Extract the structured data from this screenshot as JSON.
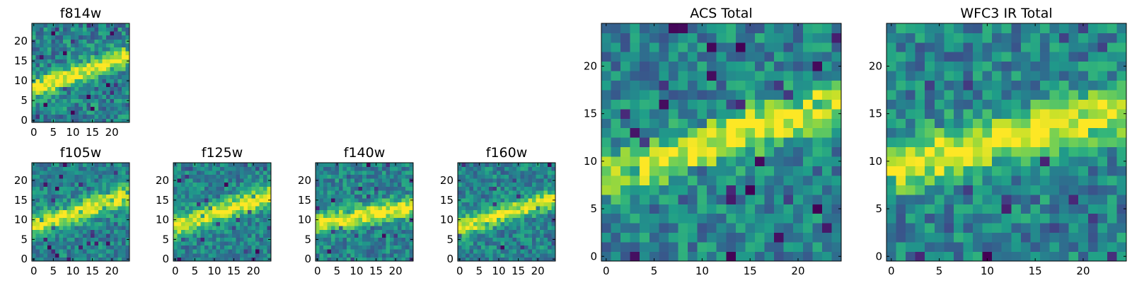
{
  "chart_data": [
    {
      "type": "heatmap",
      "title": "f814w",
      "grid_size": 25,
      "xlim": [
        -0.5,
        24.5
      ],
      "ylim": [
        -0.5,
        24.5
      ],
      "xticks": [
        0,
        5,
        10,
        15,
        20
      ],
      "yticks": [
        0,
        5,
        10,
        15,
        20
      ],
      "colormap": "viridis",
      "grid": false,
      "feature": {
        "description_free": true,
        "band_slope": 0.35,
        "band_intercept": 8.0,
        "band_width": 2.3,
        "noise": 0.42,
        "seed": 11
      }
    },
    {
      "type": "heatmap",
      "title": "f105w",
      "grid_size": 25,
      "xlim": [
        -0.5,
        24.5
      ],
      "ylim": [
        -0.5,
        24.5
      ],
      "xticks": [
        0,
        5,
        10,
        15,
        20
      ],
      "yticks": [
        0,
        5,
        10,
        15,
        20
      ],
      "colormap": "viridis",
      "grid": false,
      "feature": {
        "band_slope": 0.32,
        "band_intercept": 8.5,
        "band_width": 2.6,
        "noise": 0.34,
        "seed": 23
      }
    },
    {
      "type": "heatmap",
      "title": "f125w",
      "grid_size": 25,
      "xlim": [
        -0.5,
        24.5
      ],
      "ylim": [
        -0.5,
        24.5
      ],
      "xticks": [
        0,
        5,
        10,
        15,
        20
      ],
      "yticks": [
        0,
        5,
        10,
        15,
        20
      ],
      "colormap": "viridis",
      "grid": false,
      "feature": {
        "band_slope": 0.33,
        "band_intercept": 8.3,
        "band_width": 2.6,
        "noise": 0.34,
        "seed": 37
      }
    },
    {
      "type": "heatmap",
      "title": "f140w",
      "grid_size": 25,
      "xlim": [
        -0.5,
        24.5
      ],
      "ylim": [
        -0.5,
        24.5
      ],
      "xticks": [
        0,
        5,
        10,
        15,
        20
      ],
      "yticks": [
        0,
        5,
        10,
        15,
        20
      ],
      "colormap": "viridis",
      "grid": false,
      "feature": {
        "band_slope": 0.18,
        "band_intercept": 9.0,
        "band_width": 2.4,
        "noise": 0.36,
        "seed": 41
      }
    },
    {
      "type": "heatmap",
      "title": "f160w",
      "grid_size": 25,
      "xlim": [
        -0.5,
        24.5
      ],
      "ylim": [
        -0.5,
        24.5
      ],
      "xticks": [
        0,
        5,
        10,
        15,
        20
      ],
      "yticks": [
        0,
        5,
        10,
        15,
        20
      ],
      "colormap": "viridis",
      "grid": false,
      "feature": {
        "band_slope": 0.3,
        "band_intercept": 8.2,
        "band_width": 2.3,
        "noise": 0.36,
        "seed": 53
      }
    },
    {
      "type": "heatmap",
      "title": "ACS Total",
      "grid_size": 25,
      "xlim": [
        -0.5,
        24.5
      ],
      "ylim": [
        -0.5,
        24.5
      ],
      "xticks": [
        0,
        5,
        10,
        15,
        20
      ],
      "yticks": [
        0,
        5,
        10,
        15,
        20
      ],
      "colormap": "viridis",
      "grid": false,
      "feature": {
        "band_slope": 0.35,
        "band_intercept": 8.0,
        "band_width": 2.4,
        "noise": 0.4,
        "seed": 67
      }
    },
    {
      "type": "heatmap",
      "title": "WFC3 IR Total",
      "grid_size": 25,
      "xlim": [
        -0.5,
        24.5
      ],
      "ylim": [
        -0.5,
        24.5
      ],
      "xticks": [
        0,
        5,
        10,
        15,
        20
      ],
      "yticks": [
        0,
        5,
        10,
        15,
        20
      ],
      "colormap": "viridis",
      "grid": false,
      "feature": {
        "band_slope": 0.26,
        "band_intercept": 9.3,
        "band_width": 2.6,
        "noise": 0.4,
        "seed": 79
      }
    }
  ],
  "colors": {
    "viridis": [
      "#440154",
      "#482878",
      "#3e4a89",
      "#31688e",
      "#26828e",
      "#1f9e89",
      "#35b779",
      "#6ece58",
      "#b5de2b",
      "#fde725"
    ],
    "axis": "#000000",
    "background": "#ffffff"
  }
}
